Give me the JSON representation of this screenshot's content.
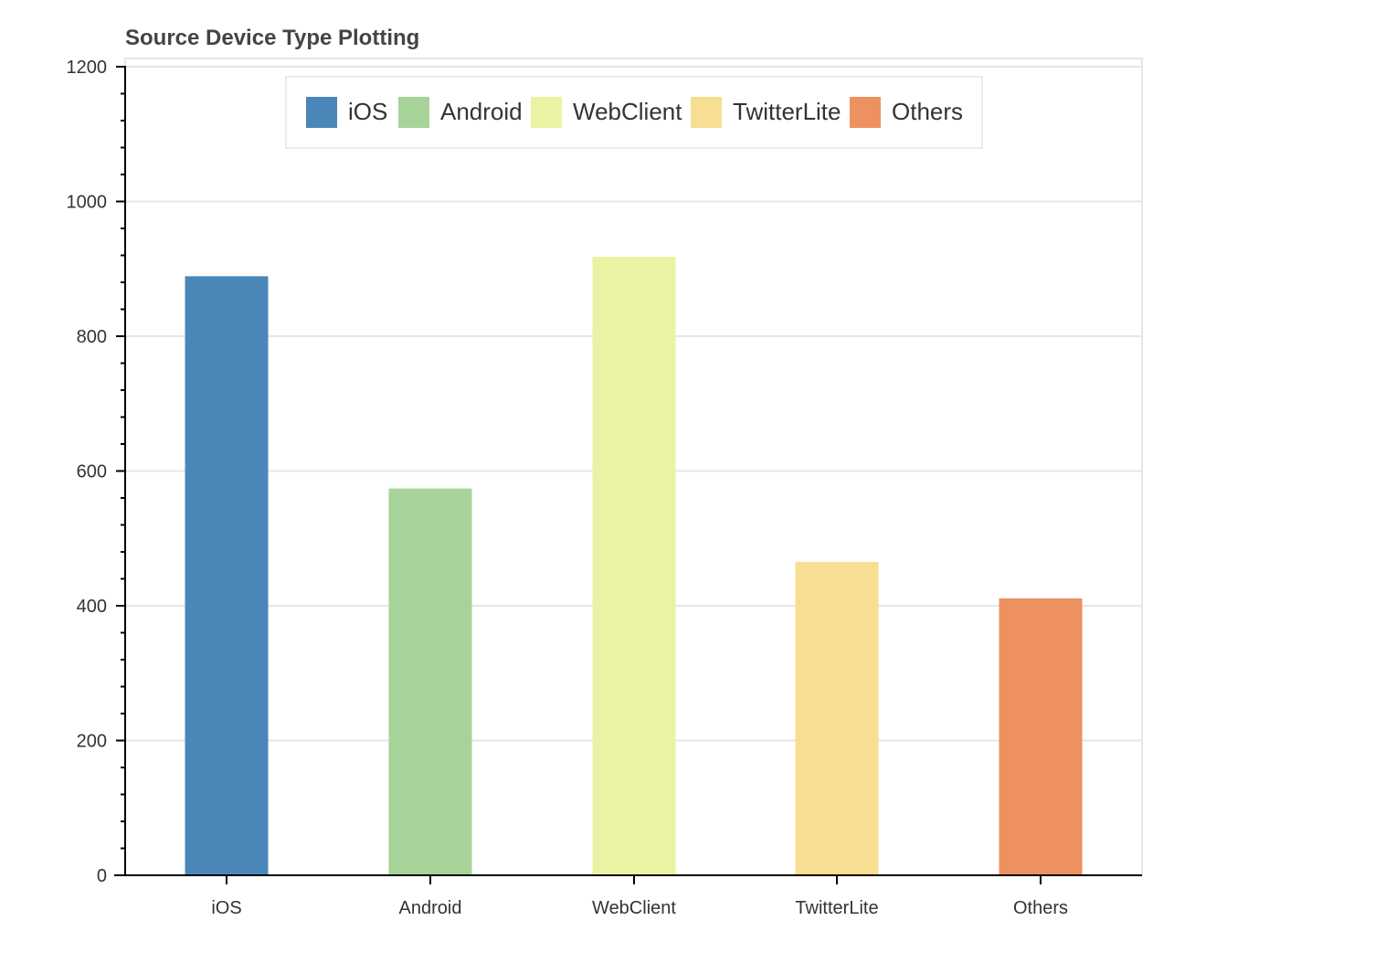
{
  "chart_data": {
    "type": "bar",
    "title": "Source Device Type Plotting",
    "xlabel": "",
    "ylabel": "",
    "categories": [
      "iOS",
      "Android",
      "WebClient",
      "TwitterLite",
      "Others"
    ],
    "values": [
      889,
      574,
      918,
      465,
      411
    ],
    "colors": [
      "#4a87b8",
      "#a8d398",
      "#e9f3a3",
      "#f8de92",
      "#ee9160"
    ],
    "ylim": [
      0,
      1200
    ],
    "y_ticks": [
      0,
      200,
      400,
      600,
      800,
      1000,
      1200
    ],
    "grid": true,
    "legend": {
      "placement": "top-center",
      "entries": [
        "iOS",
        "Android",
        "WebClient",
        "TwitterLite",
        "Others"
      ]
    }
  }
}
